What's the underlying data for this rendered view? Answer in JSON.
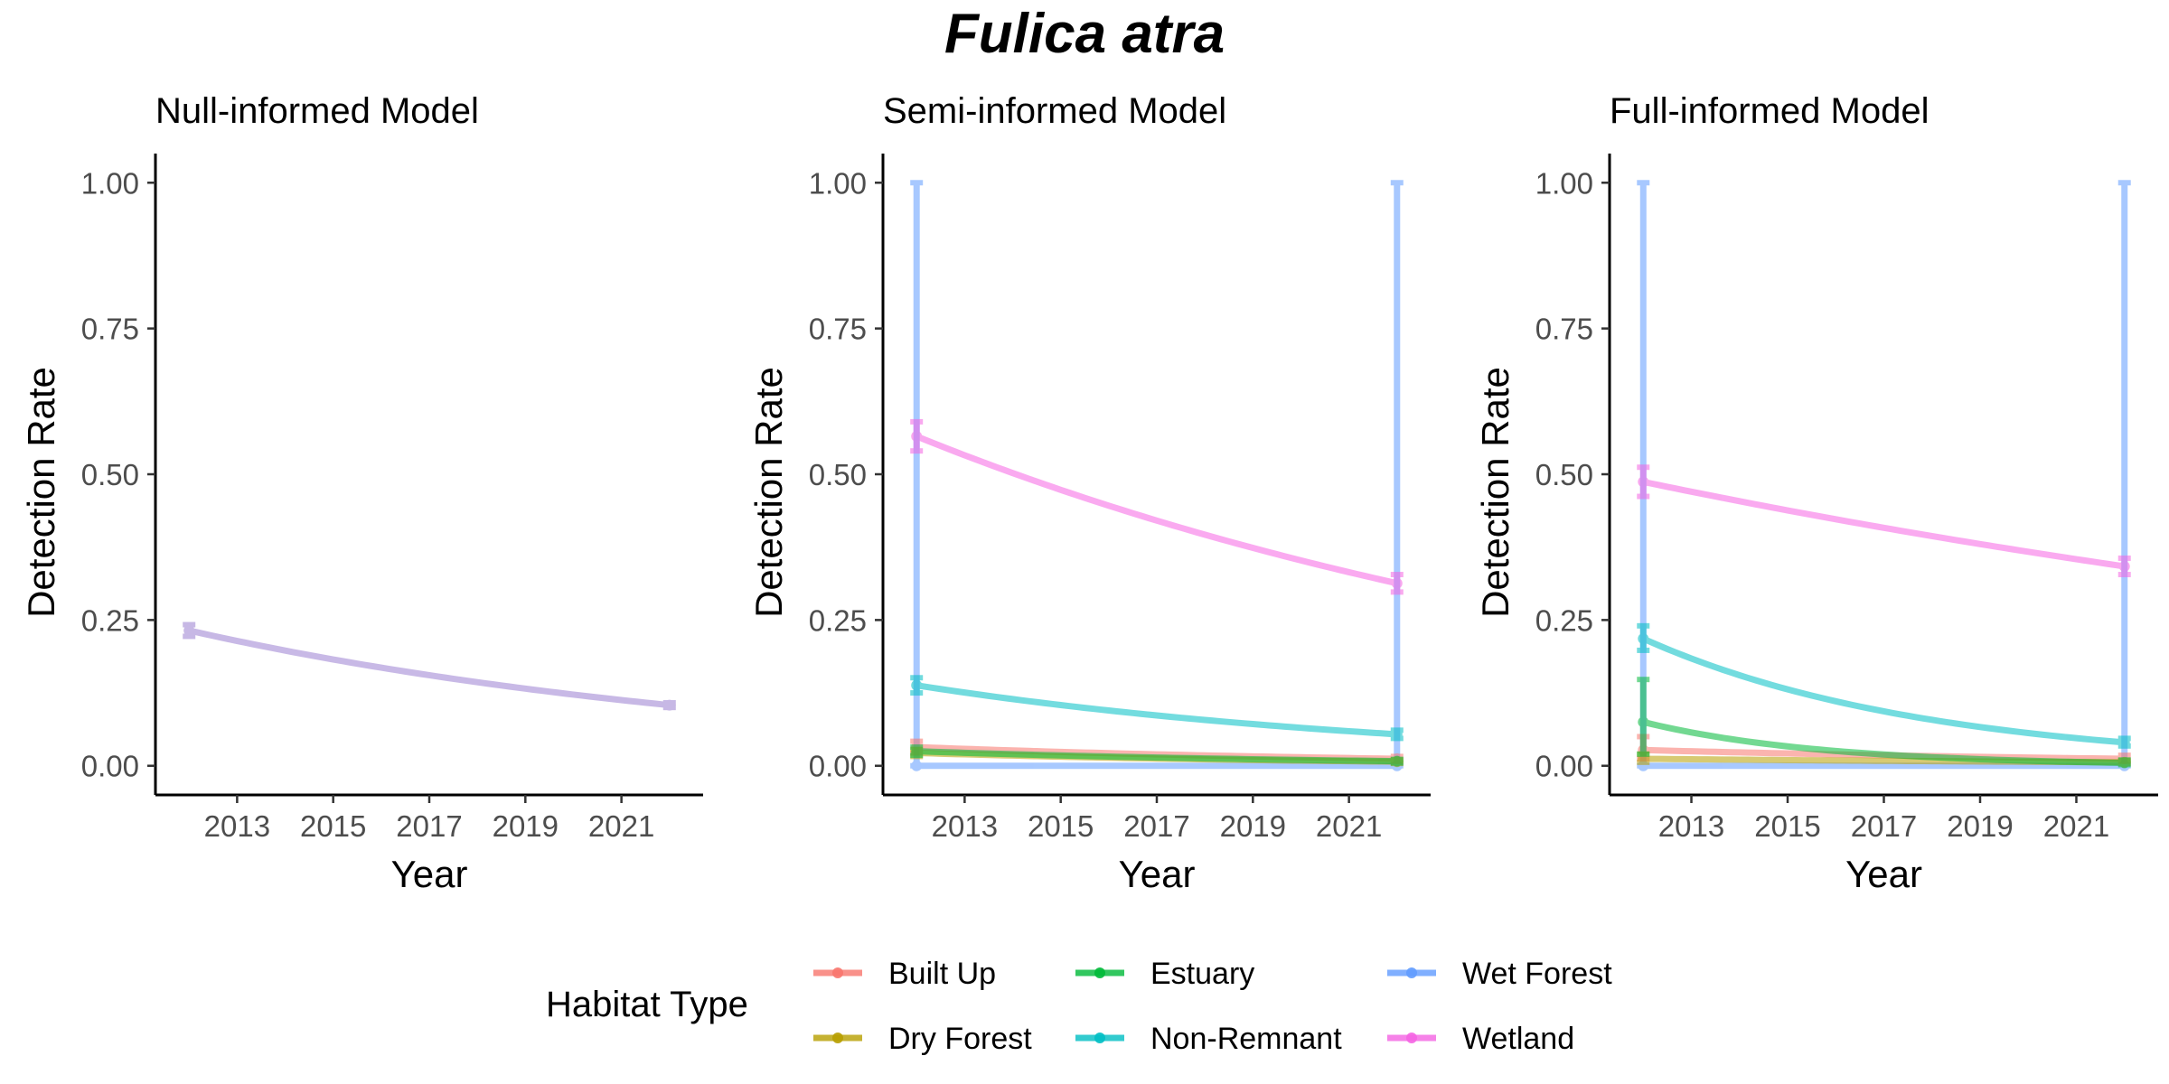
{
  "title": "Fulica atra",
  "legend": {
    "title": "Habitat Type",
    "position": "bottom",
    "items": [
      {
        "name": "Built Up",
        "color": "#F8766D"
      },
      {
        "name": "Dry Forest",
        "color": "#B79F00"
      },
      {
        "name": "Estuary",
        "color": "#00BA38"
      },
      {
        "name": "Non-Remnant",
        "color": "#00BFC4"
      },
      {
        "name": "Wet Forest",
        "color": "#619CFF"
      },
      {
        "name": "Wetland",
        "color": "#F564E3"
      }
    ]
  },
  "chart_data": [
    {
      "type": "line",
      "title": "Null-informed Model",
      "xlabel": "Year",
      "ylabel": "Detection Rate",
      "xlim": [
        2011.3,
        2022.7
      ],
      "ylim": [
        -0.05,
        1.05
      ],
      "x_ticks": [
        2013,
        2015,
        2017,
        2019,
        2021
      ],
      "y_ticks": [
        "0.00",
        "0.25",
        "0.50",
        "0.75",
        "1.00"
      ],
      "grid": false,
      "series": [
        {
          "color": "#9A7FD1",
          "curve": {
            "x0": 2012,
            "x1": 2022,
            "y0": 0.232,
            "y1": 0.104
          },
          "errorbars": [
            {
              "x": 2012,
              "y": 0.232,
              "lo": 0.222,
              "hi": 0.242
            },
            {
              "x": 2022,
              "y": 0.104,
              "lo": 0.1,
              "hi": 0.108
            }
          ]
        }
      ]
    },
    {
      "type": "line",
      "title": "Semi-informed Model",
      "xlabel": "Year",
      "ylabel": "Detection Rate",
      "xlim": [
        2011.3,
        2022.7
      ],
      "ylim": [
        -0.05,
        1.05
      ],
      "x_ticks": [
        2013,
        2015,
        2017,
        2019,
        2021
      ],
      "y_ticks": [
        "0.00",
        "0.25",
        "0.50",
        "0.75",
        "1.00"
      ],
      "grid": false,
      "series": [
        {
          "name": "Wet Forest",
          "curve": {
            "x0": 2012,
            "x1": 2022,
            "y0": 0.0,
            "y1": 0.0
          },
          "errorbars": [
            {
              "x": 2012,
              "y": 0.0,
              "lo": 0.0,
              "hi": 1.0
            },
            {
              "x": 2022,
              "y": 0.0,
              "lo": 0.0,
              "hi": 1.0
            }
          ]
        },
        {
          "name": "Built Up",
          "curve": {
            "x0": 2012,
            "x1": 2022,
            "y0": 0.032,
            "y1": 0.012
          },
          "errorbars": [
            {
              "x": 2012,
              "y": 0.032,
              "lo": 0.022,
              "hi": 0.042
            },
            {
              "x": 2022,
              "y": 0.012,
              "lo": 0.008,
              "hi": 0.016
            }
          ]
        },
        {
          "name": "Dry Forest",
          "curve": {
            "x0": 2012,
            "x1": 2022,
            "y0": 0.022,
            "y1": 0.007
          },
          "errorbars": [
            {
              "x": 2012,
              "y": 0.022,
              "lo": 0.016,
              "hi": 0.028
            },
            {
              "x": 2022,
              "y": 0.007,
              "lo": 0.004,
              "hi": 0.01
            }
          ]
        },
        {
          "name": "Estuary",
          "curve": {
            "x0": 2012,
            "x1": 2022,
            "y0": 0.025,
            "y1": 0.008
          },
          "errorbars": [
            {
              "x": 2012,
              "y": 0.025,
              "lo": 0.018,
              "hi": 0.032
            },
            {
              "x": 2022,
              "y": 0.008,
              "lo": 0.005,
              "hi": 0.011
            }
          ]
        },
        {
          "name": "Non-Remnant",
          "curve": {
            "x0": 2012,
            "x1": 2022,
            "y0": 0.138,
            "y1": 0.054
          },
          "errorbars": [
            {
              "x": 2012,
              "y": 0.138,
              "lo": 0.125,
              "hi": 0.151
            },
            {
              "x": 2022,
              "y": 0.054,
              "lo": 0.047,
              "hi": 0.061
            }
          ]
        },
        {
          "name": "Wetland",
          "curve": {
            "x0": 2012,
            "x1": 2022,
            "y0": 0.565,
            "y1": 0.313
          },
          "errorbars": [
            {
              "x": 2012,
              "y": 0.565,
              "lo": 0.54,
              "hi": 0.59
            },
            {
              "x": 2022,
              "y": 0.313,
              "lo": 0.298,
              "hi": 0.328
            }
          ]
        }
      ]
    },
    {
      "type": "line",
      "title": "Full-informed Model",
      "xlabel": "Year",
      "ylabel": "Detection Rate",
      "xlim": [
        2011.3,
        2022.7
      ],
      "ylim": [
        -0.05,
        1.05
      ],
      "x_ticks": [
        2013,
        2015,
        2017,
        2019,
        2021
      ],
      "y_ticks": [
        "0.00",
        "0.25",
        "0.50",
        "0.75",
        "1.00"
      ],
      "grid": false,
      "series": [
        {
          "name": "Wet Forest",
          "curve": {
            "x0": 2012,
            "x1": 2022,
            "y0": 0.0,
            "y1": 0.0
          },
          "errorbars": [
            {
              "x": 2012,
              "y": 0.0,
              "lo": 0.0,
              "hi": 1.0
            },
            {
              "x": 2022,
              "y": 0.0,
              "lo": 0.0,
              "hi": 1.0
            }
          ]
        },
        {
          "name": "Built Up",
          "curve": {
            "x0": 2012,
            "x1": 2022,
            "y0": 0.027,
            "y1": 0.012
          },
          "errorbars": [
            {
              "x": 2012,
              "y": 0.027,
              "lo": 0.012,
              "hi": 0.05
            },
            {
              "x": 2022,
              "y": 0.012,
              "lo": 0.008,
              "hi": 0.018
            }
          ]
        },
        {
          "name": "Dry Forest",
          "curve": {
            "x0": 2012,
            "x1": 2022,
            "y0": 0.012,
            "y1": 0.006
          },
          "errorbars": [
            {
              "x": 2012,
              "y": 0.012,
              "lo": 0.006,
              "hi": 0.02
            },
            {
              "x": 2022,
              "y": 0.006,
              "lo": 0.004,
              "hi": 0.009
            }
          ]
        },
        {
          "name": "Estuary",
          "curve": {
            "x0": 2012,
            "x1": 2022,
            "y0": 0.075,
            "y1": 0.005
          },
          "errorbars": [
            {
              "x": 2012,
              "y": 0.075,
              "lo": 0.02,
              "hi": 0.148
            },
            {
              "x": 2022,
              "y": 0.005,
              "lo": 0.002,
              "hi": 0.01
            }
          ]
        },
        {
          "name": "Non-Remnant",
          "curve": {
            "x0": 2012,
            "x1": 2022,
            "y0": 0.218,
            "y1": 0.04
          },
          "errorbars": [
            {
              "x": 2012,
              "y": 0.218,
              "lo": 0.198,
              "hi": 0.24
            },
            {
              "x": 2022,
              "y": 0.04,
              "lo": 0.034,
              "hi": 0.047
            }
          ]
        },
        {
          "name": "Wetland",
          "curve": {
            "x0": 2012,
            "x1": 2022,
            "y0": 0.487,
            "y1": 0.342
          },
          "errorbars": [
            {
              "x": 2012,
              "y": 0.487,
              "lo": 0.462,
              "hi": 0.512
            },
            {
              "x": 2022,
              "y": 0.342,
              "lo": 0.328,
              "hi": 0.356
            }
          ]
        }
      ]
    }
  ]
}
